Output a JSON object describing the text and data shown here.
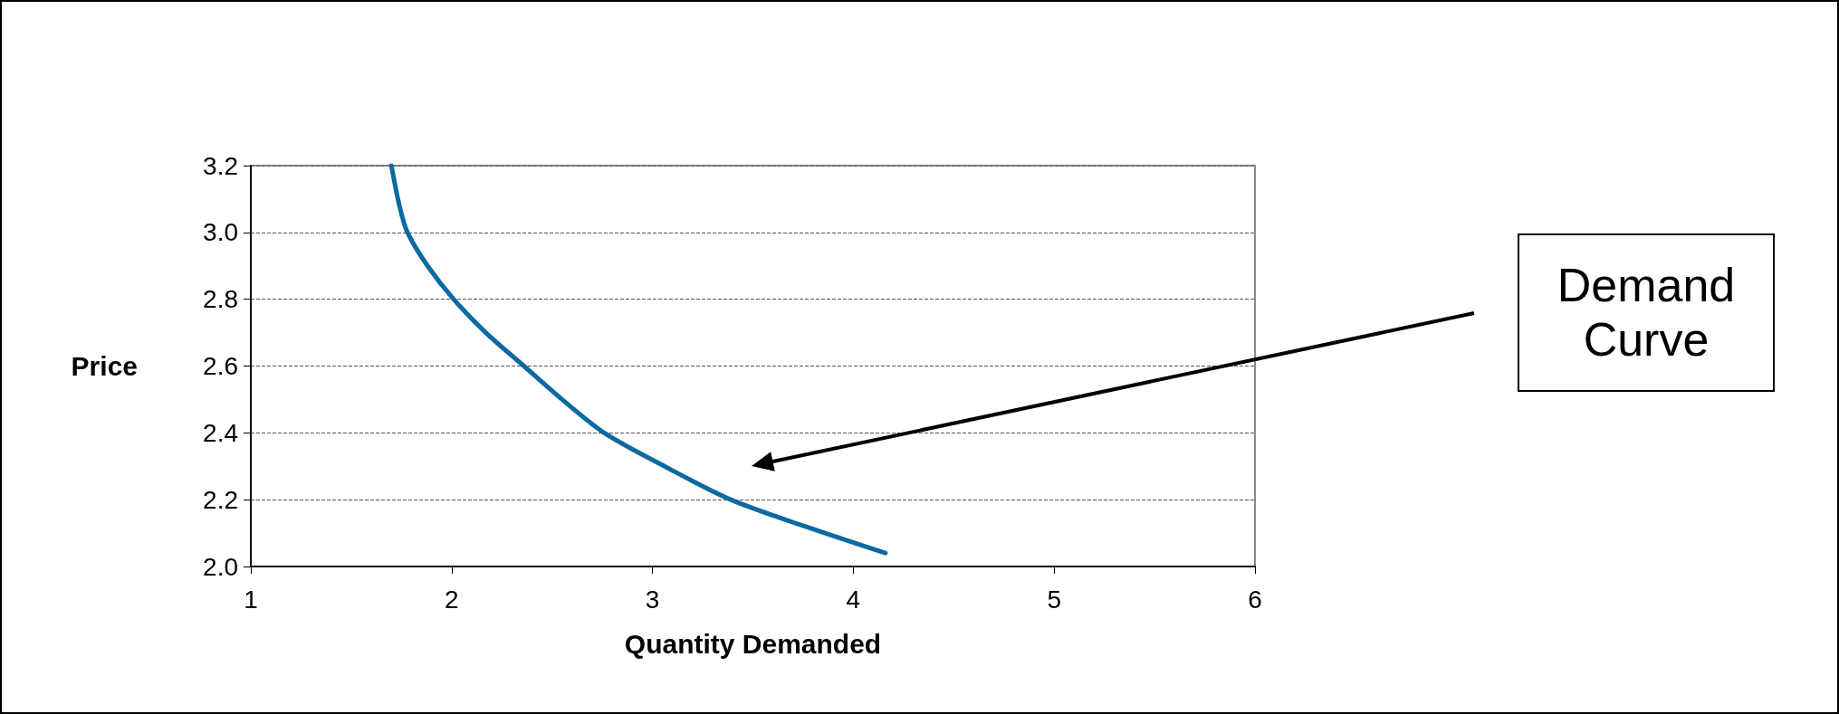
{
  "chart_data": {
    "type": "line",
    "xlabel": "Quantity Demanded",
    "ylabel": "Price",
    "series": [
      {
        "color": "#0a6aa1",
        "x": [
          1.7,
          1.74,
          1.78,
          1.88,
          2.01,
          2.17,
          2.36,
          2.55,
          2.76,
          3.06,
          3.39,
          3.76,
          4.16
        ],
        "values": [
          3.2,
          3.08,
          3.0,
          2.9,
          2.8,
          2.7,
          2.6,
          2.5,
          2.4,
          2.3,
          2.2,
          2.12,
          2.04
        ]
      }
    ],
    "xlim": [
      1,
      6
    ],
    "xticks": [
      1,
      2,
      3,
      4,
      5,
      6
    ],
    "ylim": [
      2.0,
      3.2
    ],
    "yticks": [
      {
        "value": 2.0,
        "label": "2.0"
      },
      {
        "value": 2.2,
        "label": "2.2"
      },
      {
        "value": 2.4,
        "label": "2.4"
      },
      {
        "value": 2.6,
        "label": "2.6"
      },
      {
        "value": 2.8,
        "label": "2.8"
      },
      {
        "value": 3.0,
        "label": "3.0"
      },
      {
        "value": 3.2,
        "label": "3.2"
      }
    ],
    "grid": "y",
    "marker": "none",
    "line_style": "solid",
    "annotations": [
      "Demand\nCurve"
    ]
  }
}
